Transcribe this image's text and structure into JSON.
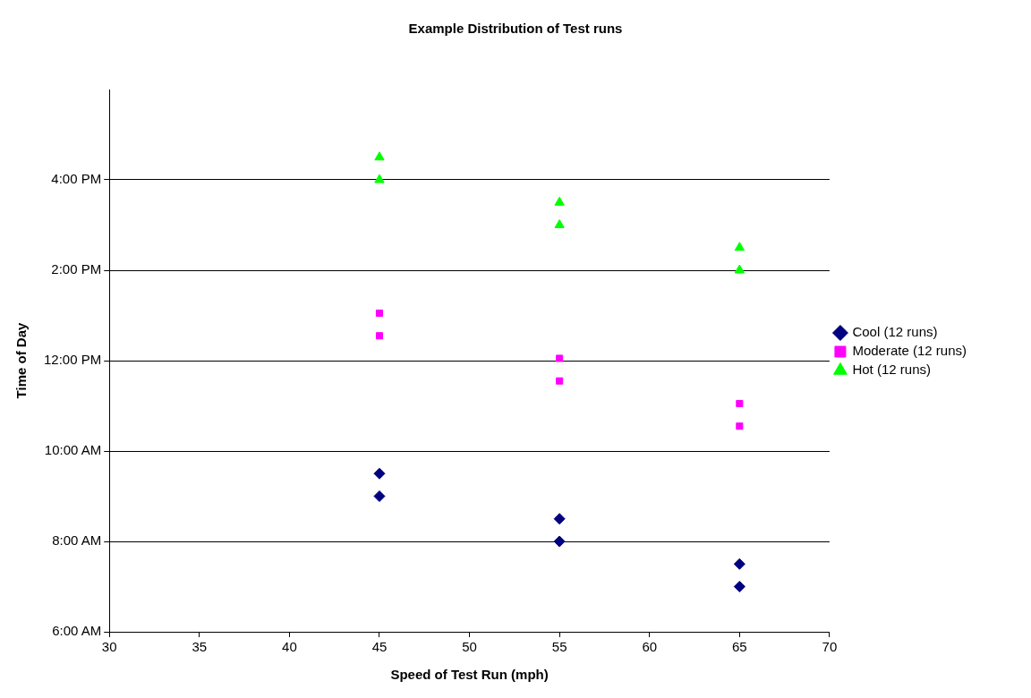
{
  "chart_data": {
    "type": "scatter",
    "title": "Example Distribution of Test runs",
    "xlabel": "Speed of Test Run (mph)",
    "ylabel": "Time of Day",
    "xlim": [
      30,
      70
    ],
    "xticks": [
      30,
      35,
      40,
      45,
      50,
      55,
      60,
      65,
      70
    ],
    "ylim": [
      6,
      18
    ],
    "yticks": [
      {
        "value": 6,
        "label": "6:00 AM"
      },
      {
        "value": 8,
        "label": "8:00 AM"
      },
      {
        "value": 10,
        "label": "10:00 AM"
      },
      {
        "value": 12,
        "label": "12:00 PM"
      },
      {
        "value": 14,
        "label": "2:00 PM"
      },
      {
        "value": 16,
        "label": "4:00 PM"
      }
    ],
    "grid": "y",
    "legend": "right",
    "series": [
      {
        "name": "Cool (12 runs)",
        "color": "#000080",
        "marker": "diamond",
        "x": [
          45,
          45,
          55,
          55,
          65,
          65
        ],
        "values": [
          9,
          9.5,
          8,
          8.5,
          7,
          7.5
        ]
      },
      {
        "name": "Moderate (12 runs)",
        "color": "#ff00ff",
        "marker": "square",
        "x": [
          45,
          45,
          55,
          55,
          65,
          65
        ],
        "values": [
          12.55,
          13.05,
          11.55,
          12.05,
          10.55,
          11.05
        ]
      },
      {
        "name": "Hot (12 runs)",
        "color": "#00ff00",
        "marker": "triangle",
        "x": [
          45,
          45,
          55,
          55,
          65,
          65
        ],
        "values": [
          16,
          16.5,
          15,
          15.5,
          14,
          14.5
        ]
      }
    ]
  }
}
